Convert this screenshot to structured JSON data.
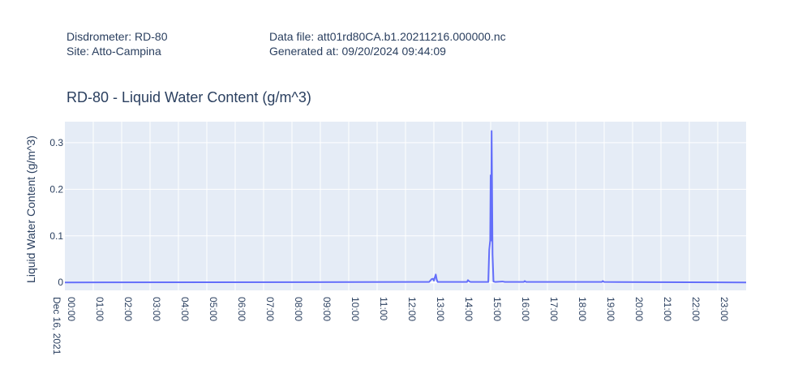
{
  "header": {
    "instrument": "Disdrometer: RD-80",
    "site": "Site: Atto-Campina",
    "data_file": "Data file: att01rd80CA.b1.20211216.000000.nc",
    "generated_at": "Generated at: 09/20/2024 09:44:09"
  },
  "colors": {
    "plot_background": "#e5ecf6",
    "grid": "#ffffff",
    "line": "#636efa",
    "text": "#2a3f5f"
  },
  "chart_data": {
    "type": "line",
    "title": "RD-80 - Liquid Water Content (g/m^3)",
    "xlabel": "",
    "ylabel": "Liquid Water Content (g/m^3)",
    "x_date_label": "Dec 16, 2021",
    "xlim": [
      0,
      24
    ],
    "ylim": [
      -0.017,
      0.345
    ],
    "y_ticks": [
      0,
      0.1,
      0.2,
      0.3
    ],
    "y_tick_labels": [
      "0",
      "0.1",
      "0.2",
      "0.3"
    ],
    "x_tick_labels": [
      "00:00",
      "01:00",
      "02:00",
      "03:00",
      "04:00",
      "05:00",
      "06:00",
      "07:00",
      "08:00",
      "09:00",
      "10:00",
      "11:00",
      "12:00",
      "13:00",
      "14:00",
      "15:00",
      "16:00",
      "17:00",
      "18:00",
      "19:00",
      "20:00",
      "21:00",
      "22:00",
      "23:00"
    ],
    "grid": true,
    "series": [
      {
        "name": "",
        "points": [
          [
            "00:00",
            0
          ],
          [
            "12:50",
            0.001
          ],
          [
            "12:55",
            0.007
          ],
          [
            "12:58",
            0.008
          ],
          [
            "13:00",
            0.004
          ],
          [
            "13:02",
            0.011
          ],
          [
            "13:04",
            0.017
          ],
          [
            "13:06",
            0.006
          ],
          [
            "13:08",
            0.001
          ],
          [
            "14:10",
            0.001
          ],
          [
            "14:12",
            0.005
          ],
          [
            "14:15",
            0.002
          ],
          [
            "14:18",
            0.001
          ],
          [
            "14:55",
            0.001
          ],
          [
            "14:57",
            0.07
          ],
          [
            "14:59",
            0.09
          ],
          [
            "15:00",
            0.23
          ],
          [
            "15:01",
            0.09
          ],
          [
            "15:02",
            0.325
          ],
          [
            "15:03",
            0.2
          ],
          [
            "15:04",
            0.06
          ],
          [
            "15:06",
            0.002
          ],
          [
            "15:10",
            0.001
          ],
          [
            "15:25",
            0.002
          ],
          [
            "15:30",
            0.001
          ],
          [
            "16:10",
            0.001
          ],
          [
            "16:12",
            0.003
          ],
          [
            "16:15",
            0.001
          ],
          [
            "18:55",
            0.001
          ],
          [
            "18:57",
            0.003
          ],
          [
            "19:00",
            0.001
          ],
          [
            "24:00",
            0
          ]
        ]
      }
    ]
  }
}
